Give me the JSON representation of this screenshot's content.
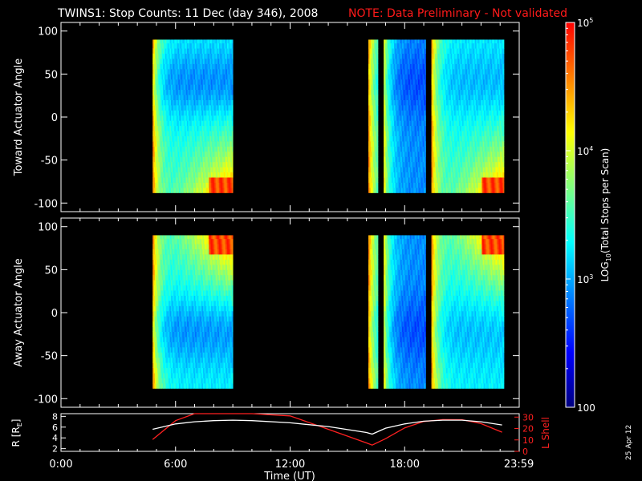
{
  "header": {
    "title": "TWINS1: Stop Counts: 11 Dec (day 346), 2008",
    "note": "NOTE: Data Preliminary - Not validated",
    "note_color": "#ff1a1a"
  },
  "footer": {
    "date_stamp": "25 Apr 12"
  },
  "chart_data": [
    {
      "type": "heatmap",
      "ylabel": "Toward Actuator Angle",
      "ylim": [
        -110,
        110
      ],
      "yticks": [
        100,
        50,
        0,
        -50,
        -100
      ],
      "x_range_hours": [
        0,
        24
      ],
      "data_blocks_hours": [
        [
          4.8,
          9.0
        ],
        [
          16.1,
          16.6
        ],
        [
          16.9,
          19.1
        ],
        [
          19.4,
          23.2
        ]
      ],
      "angle_extent": [
        -88,
        90
      ],
      "colormap": "rainbow"
    },
    {
      "type": "heatmap",
      "ylabel": "Away Actuator Angle",
      "ylim": [
        -110,
        110
      ],
      "yticks": [
        100,
        50,
        0,
        -50,
        -100
      ],
      "x_range_hours": [
        0,
        24
      ],
      "data_blocks_hours": [
        [
          4.8,
          9.0
        ],
        [
          16.1,
          16.6
        ],
        [
          16.9,
          19.1
        ],
        [
          19.4,
          23.2
        ]
      ],
      "angle_extent": [
        -88,
        90
      ],
      "colormap": "rainbow"
    },
    {
      "type": "line",
      "ylabel_left": "R [R",
      "ylabel_left_sub": "E",
      "ylabel_left_close": "]",
      "yticks_left": [
        8,
        6,
        4,
        2
      ],
      "ylim_left": [
        1.5,
        8.5
      ],
      "ylabel_right": "L Shell",
      "yticks_right": [
        30,
        20,
        10,
        0
      ],
      "ylim_right": [
        0,
        33
      ],
      "right_axis_color": "#ff2020",
      "x": [
        4.8,
        6,
        7,
        8,
        9,
        10,
        12,
        14,
        16,
        16.3,
        17,
        18,
        19,
        20,
        21,
        22,
        23.1
      ],
      "R": [
        5.6,
        6.6,
        7.0,
        7.2,
        7.3,
        7.2,
        6.8,
        6.1,
        5.0,
        4.7,
        5.8,
        6.6,
        7.1,
        7.3,
        7.3,
        7.0,
        6.4
      ],
      "L": [
        10.3,
        26.9,
        33.2,
        33.2,
        33.2,
        33.2,
        31.0,
        19.3,
        7.4,
        5.5,
        11.1,
        20.6,
        26.1,
        27.8,
        27.7,
        24.3,
        16.8
      ],
      "r_color": "#ffffff",
      "l_color": "#ff2020"
    }
  ],
  "x_axis": {
    "label": "Time (UT)",
    "ticks": [
      {
        "h": 0,
        "label": "0:00"
      },
      {
        "h": 6,
        "label": "6:00"
      },
      {
        "h": 12,
        "label": "12:00"
      },
      {
        "h": 18,
        "label": "18:00"
      },
      {
        "h": 23.983,
        "label": "23:59"
      }
    ]
  },
  "colorbar": {
    "label_pre": "LOG",
    "label_sub": "10",
    "label_post": "(Total Stops per Scan)",
    "min": 100,
    "max": 100000,
    "tick_labels": [
      {
        "value": 100000,
        "base": "10",
        "exp": "5"
      },
      {
        "value": 10000,
        "base": "10",
        "exp": "4"
      },
      {
        "value": 1000,
        "base": "10",
        "exp": "3"
      },
      {
        "value": 100,
        "base": "100",
        "exp": ""
      }
    ],
    "colors": [
      "#00007f",
      "#0000ff",
      "#007fff",
      "#00ffff",
      "#7fff7f",
      "#ffff00",
      "#ff7f00",
      "#ff0000"
    ]
  }
}
